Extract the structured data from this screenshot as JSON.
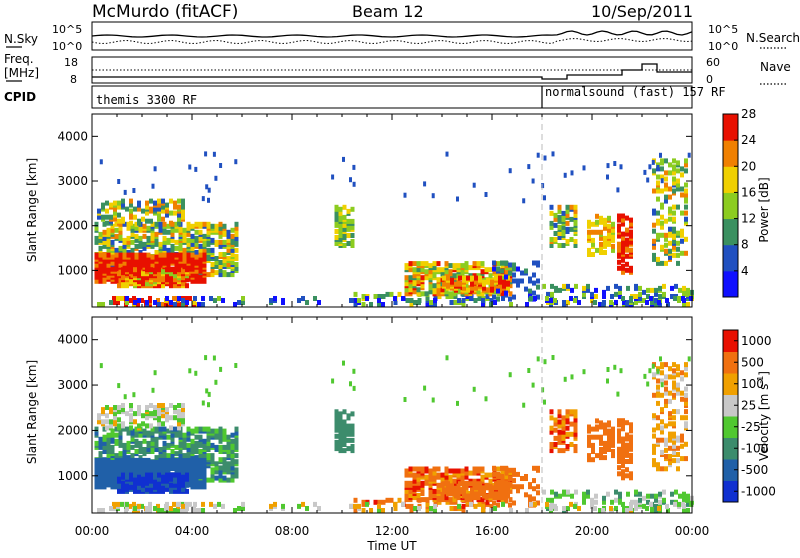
{
  "header": {
    "station": "McMurdo (fitACF)",
    "beam": "Beam 12",
    "date": "10/Sep/2011"
  },
  "top_panels": {
    "nsky_label": "N.Sky",
    "freq_label_1": "Freq.",
    "freq_label_2": "[MHz]",
    "cpid_label": "CPID",
    "nsearch_label": "N.Search",
    "nave_label": "Nave",
    "nsky_ticks": [
      "10^5",
      "10^0"
    ],
    "nsearch_ticks": [
      "10^5",
      "10^0"
    ],
    "freq_ticks": [
      "18",
      "8"
    ],
    "nave_ticks": [
      "60",
      "0"
    ],
    "cpid_left": "themis 3300 RF",
    "cpid_right": "normalsound (fast) 157 RF"
  },
  "chart_data": [
    {
      "type": "heatmap",
      "name": "power",
      "ylabel": "Slant Range [km]",
      "yticks": [
        "1000",
        "2000",
        "3000",
        "4000"
      ],
      "ylim": [
        180,
        4500
      ],
      "xlim": [
        0,
        24
      ],
      "colorbar_label": "Power [dB]",
      "colorbar_ticks": [
        "4",
        "8",
        "12",
        "16",
        "20",
        "24",
        "28"
      ],
      "colorbar_colors": [
        "#1010ff",
        "#2050c0",
        "#3a9060",
        "#8ccc20",
        "#f0d000",
        "#f08000",
        "#e81000"
      ],
      "mode_change_hour": 18
    },
    {
      "type": "heatmap",
      "name": "velocity",
      "ylabel": "Slant Range [km]",
      "yticks": [
        "1000",
        "2000",
        "3000",
        "4000"
      ],
      "ylim": [
        180,
        4500
      ],
      "xlim": [
        0,
        24
      ],
      "xticks": [
        "00:00",
        "04:00",
        "08:00",
        "12:00",
        "16:00",
        "20:00",
        "00:00"
      ],
      "xlabel": "Time UT",
      "colorbar_label": "Velocity [m s",
      "colorbar_label_sup": "-1",
      "colorbar_ticks": [
        "1000",
        "500",
        "100",
        "25",
        "-25",
        "-100",
        "-500",
        "-1000"
      ],
      "colorbar_colors": [
        "#1030d0",
        "#2060a8",
        "#3c8c6c",
        "#50c830",
        "#c8c8c8",
        "#f0a000",
        "#f07010",
        "#e81000"
      ],
      "mode_change_hour": 18
    }
  ]
}
